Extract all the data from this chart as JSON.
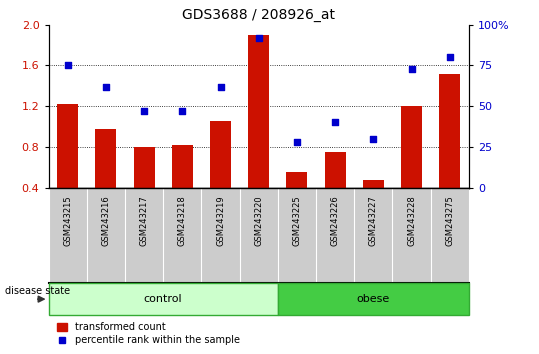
{
  "title": "GDS3688 / 208926_at",
  "samples": [
    "GSM243215",
    "GSM243216",
    "GSM243217",
    "GSM243218",
    "GSM243219",
    "GSM243220",
    "GSM243225",
    "GSM243226",
    "GSM243227",
    "GSM243228",
    "GSM243275"
  ],
  "bar_values": [
    1.22,
    0.98,
    0.8,
    0.82,
    1.05,
    1.9,
    0.55,
    0.75,
    0.47,
    1.2,
    1.52
  ],
  "percentile_values": [
    75,
    62,
    47,
    47,
    62,
    92,
    28,
    40,
    30,
    73,
    80
  ],
  "bar_color": "#cc1100",
  "dot_color": "#0000cc",
  "ylim_left": [
    0.4,
    2.0
  ],
  "ylim_right": [
    0,
    100
  ],
  "yticks_left": [
    0.4,
    0.8,
    1.2,
    1.6,
    2.0
  ],
  "yticks_right": [
    0,
    25,
    50,
    75,
    100
  ],
  "ytick_labels_right": [
    "0",
    "25",
    "50",
    "75",
    "100%"
  ],
  "grid_values": [
    0.8,
    1.2,
    1.6
  ],
  "num_control": 6,
  "num_obese": 5,
  "control_color": "#ccffcc",
  "obese_color": "#44cc44",
  "control_label": "control",
  "obese_label": "obese",
  "disease_state_label": "disease state",
  "legend_bar_label": "transformed count",
  "legend_dot_label": "percentile rank within the sample",
  "bar_width": 0.55,
  "title_fontsize": 10,
  "tick_fontsize": 8,
  "label_fontsize": 8,
  "sample_fontsize": 6,
  "gray_box_color": "#cccccc",
  "separator_color": "#ffffff"
}
